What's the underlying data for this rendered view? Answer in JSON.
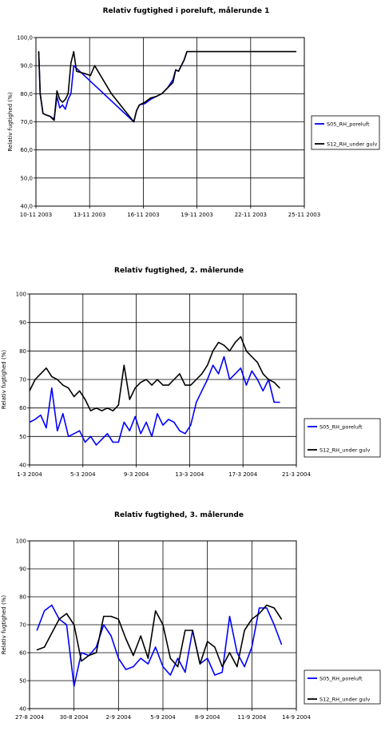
{
  "chart_data": [
    {
      "type": "line",
      "title": "Relativ fugtighed i poreluft, målerunde 1",
      "xlabel": "",
      "ylabel": "Relativ fugtighed (%)",
      "ylim": [
        40,
        100
      ],
      "yticks": [
        "40,0",
        "50,0",
        "60,0",
        "70,0",
        "80,0",
        "90,0",
        "100,0"
      ],
      "xlim": [
        "2003-11-10",
        "2003-11-26"
      ],
      "xticks": [
        "10-11 2003",
        "13-11 2003",
        "16-11 2003",
        "19-11 2003",
        "22-11 2003",
        "25-11 2003"
      ],
      "grid": true,
      "legend": "right",
      "series": [
        {
          "name": "S05_RH_poreluft",
          "color": "#0000ff",
          "x": [
            "2003-11-10T04",
            "2003-11-10T06",
            "2003-11-10T10",
            "2003-11-10T14",
            "2003-11-10T20",
            "2003-11-11T02",
            "2003-11-11T06",
            "2003-11-11T10",
            "2003-11-11T14",
            "2003-11-11T18",
            "2003-11-11T22",
            "2003-11-12T02",
            "2003-11-12T06",
            "2003-11-15T20",
            "2003-11-16T00",
            "2003-11-16T04",
            "2003-11-16T12",
            "2003-11-16T20",
            "2003-11-17T04",
            "2003-11-17T12",
            "2003-11-17T20",
            "2003-11-18T04",
            "2003-11-18T08",
            "2003-11-18T12",
            "2003-11-18T20",
            "2003-11-19T00"
          ],
          "y": [
            95,
            80,
            73,
            72.5,
            72,
            71,
            79,
            75,
            76,
            74.5,
            78,
            80,
            90,
            70,
            74,
            76,
            76.5,
            78,
            79,
            80,
            82,
            85,
            88.5,
            88,
            92,
            95
          ]
        },
        {
          "name": "S12_RH_under gulv",
          "color": "#000000",
          "x": [
            "2003-11-10T04",
            "2003-11-10T06",
            "2003-11-10T10",
            "2003-11-10T14",
            "2003-11-10T20",
            "2003-11-11T02",
            "2003-11-11T06",
            "2003-11-11T10",
            "2003-11-11T14",
            "2003-11-11T18",
            "2003-11-11T22",
            "2003-11-12T02",
            "2003-11-12T06",
            "2003-11-12T10",
            "2003-11-13T00",
            "2003-11-13T06",
            "2003-11-13T12",
            "2003-11-14T12",
            "2003-11-15T20",
            "2003-11-16T00",
            "2003-11-16T04",
            "2003-11-16T12",
            "2003-11-16T20",
            "2003-11-17T04",
            "2003-11-17T12",
            "2003-11-17T20",
            "2003-11-18T04",
            "2003-11-18T08",
            "2003-11-18T12",
            "2003-11-18T20",
            "2003-11-19T00",
            "2003-11-19T04",
            "2003-11-20T00",
            "2003-11-22T00",
            "2003-11-24T00",
            "2003-11-25T12"
          ],
          "y": [
            95,
            80,
            73,
            72.5,
            72,
            70.5,
            81,
            78,
            77,
            78,
            80,
            91,
            95,
            88,
            87,
            86.5,
            90,
            80,
            70,
            74,
            76,
            77,
            78.5,
            79,
            80,
            82,
            84,
            88.5,
            88,
            92,
            95,
            95,
            95,
            95,
            95,
            95
          ]
        }
      ]
    },
    {
      "type": "line",
      "title": "Relativ fugtighed, 2. målerunde",
      "xlabel": "",
      "ylabel": "Relativ fugtighed (%)",
      "ylim": [
        40,
        100
      ],
      "yticks": [
        "40",
        "50",
        "60",
        "70",
        "80",
        "90",
        "100"
      ],
      "xlim": [
        "2004-03-01",
        "2004-03-25"
      ],
      "xticks": [
        "1-3 2004",
        "5-3 2004",
        "9-3 2004",
        "13-3 2004",
        "17-3 2004",
        "21-3 2004"
      ],
      "grid": true,
      "legend": "right",
      "series": [
        {
          "name": "S05_RH_poreluft",
          "color": "#0000ff",
          "x": [
            "2004-03-01T00",
            "2004-03-01T12",
            "2004-03-02T00",
            "2004-03-02T12",
            "2004-03-03T00",
            "2004-03-03T12",
            "2004-03-04T00",
            "2004-03-04T12",
            "2004-03-05T00",
            "2004-03-05T12",
            "2004-03-06T00",
            "2004-03-06T12",
            "2004-03-07T00",
            "2004-03-07T12",
            "2004-03-08T00",
            "2004-03-08T12",
            "2004-03-09T00",
            "2004-03-09T12",
            "2004-03-10T00",
            "2004-03-10T12",
            "2004-03-11T00",
            "2004-03-11T12",
            "2004-03-12T00",
            "2004-03-12T12",
            "2004-03-13T00",
            "2004-03-13T12",
            "2004-03-14T00",
            "2004-03-14T12",
            "2004-03-15T00",
            "2004-03-15T12",
            "2004-03-16T00",
            "2004-03-16T12",
            "2004-03-17T00",
            "2004-03-17T12",
            "2004-03-18T00",
            "2004-03-18T12",
            "2004-03-19T00",
            "2004-03-19T12",
            "2004-03-20T00",
            "2004-03-20T12",
            "2004-03-21T00",
            "2004-03-21T12",
            "2004-03-22T00",
            "2004-03-22T12",
            "2004-03-23T00",
            "2004-03-23T12"
          ],
          "y": [
            55,
            56,
            57.5,
            53,
            67,
            52,
            58,
            50,
            51,
            52,
            48,
            50,
            47,
            49,
            51,
            48,
            48,
            55,
            52,
            57,
            51,
            55,
            50,
            58,
            54,
            56,
            55,
            52,
            51,
            54,
            62,
            66,
            70,
            75,
            72,
            78,
            70,
            72,
            74,
            68,
            73,
            70,
            66,
            70,
            62,
            62
          ]
        },
        {
          "name": "S12_RH_under gulv",
          "color": "#000000",
          "x": [
            "2004-03-01T00",
            "2004-03-01T12",
            "2004-03-02T00",
            "2004-03-02T12",
            "2004-03-03T00",
            "2004-03-03T12",
            "2004-03-04T00",
            "2004-03-04T12",
            "2004-03-05T00",
            "2004-03-05T12",
            "2004-03-06T00",
            "2004-03-06T12",
            "2004-03-07T00",
            "2004-03-07T12",
            "2004-03-08T00",
            "2004-03-08T12",
            "2004-03-09T00",
            "2004-03-09T12",
            "2004-03-10T00",
            "2004-03-10T12",
            "2004-03-11T00",
            "2004-03-11T12",
            "2004-03-12T00",
            "2004-03-12T12",
            "2004-03-13T00",
            "2004-03-13T12",
            "2004-03-14T00",
            "2004-03-14T12",
            "2004-03-15T00",
            "2004-03-15T12",
            "2004-03-16T00",
            "2004-03-16T12",
            "2004-03-17T00",
            "2004-03-17T12",
            "2004-03-18T00",
            "2004-03-18T12",
            "2004-03-19T00",
            "2004-03-19T12",
            "2004-03-20T00",
            "2004-03-20T12",
            "2004-03-21T00",
            "2004-03-21T12",
            "2004-03-22T00",
            "2004-03-22T12",
            "2004-03-23T00",
            "2004-03-23T12"
          ],
          "y": [
            66,
            70,
            72,
            74,
            71,
            70,
            68,
            67,
            64,
            66,
            63,
            59,
            60,
            59,
            60,
            59,
            61,
            75,
            63,
            67,
            69,
            70,
            68,
            70,
            68,
            68,
            70,
            72,
            68,
            68,
            70,
            72,
            75,
            80,
            83,
            82,
            80,
            83,
            85,
            80,
            78,
            76,
            72,
            70,
            69,
            67
          ]
        }
      ]
    },
    {
      "type": "line",
      "title": "Relativ fugtighed, 3. målerunde",
      "xlabel": "",
      "ylabel": "Relativ fugtighed (%)",
      "ylim": [
        40,
        100
      ],
      "yticks": [
        "40",
        "50",
        "60",
        "70",
        "80",
        "90",
        "100"
      ],
      "xlim": [
        "2004-08-27",
        "2004-09-14"
      ],
      "xticks": [
        "27-8 2004",
        "30-8 2004",
        "2-9 2004",
        "5-9 2004",
        "8-9 2004",
        "11-9 2004",
        "14-9 2004"
      ],
      "grid": true,
      "legend": "right",
      "series": [
        {
          "name": "S05_RH_poreluft",
          "color": "#0000ff",
          "x": [
            "2004-08-27T12",
            "2004-08-28T00",
            "2004-08-28T12",
            "2004-08-29T00",
            "2004-08-29T12",
            "2004-08-30T00",
            "2004-08-30T12",
            "2004-08-31T00",
            "2004-08-31T12",
            "2004-09-01T00",
            "2004-09-01T12",
            "2004-09-02T00",
            "2004-09-02T12",
            "2004-09-03T00",
            "2004-09-03T12",
            "2004-09-04T00",
            "2004-09-04T12",
            "2004-09-05T00",
            "2004-09-05T12",
            "2004-09-06T00",
            "2004-09-06T12",
            "2004-09-07T00",
            "2004-09-07T12",
            "2004-09-08T00",
            "2004-09-08T12",
            "2004-09-09T00",
            "2004-09-09T12",
            "2004-09-10T00",
            "2004-09-10T12",
            "2004-09-11T00",
            "2004-09-11T12",
            "2004-09-12T00",
            "2004-09-12T12",
            "2004-09-13T00"
          ],
          "y": [
            68,
            75,
            77,
            72,
            70,
            48,
            60,
            59,
            62,
            70,
            66,
            58,
            54,
            55,
            58,
            56,
            62,
            55,
            52,
            58,
            53,
            68,
            56,
            58,
            52,
            53,
            73,
            60,
            55,
            62,
            76,
            76,
            70,
            63
          ]
        },
        {
          "name": "S12_RH_under gulv",
          "color": "#000000",
          "x": [
            "2004-08-27T12",
            "2004-08-28T00",
            "2004-08-28T12",
            "2004-08-29T00",
            "2004-08-29T12",
            "2004-08-30T00",
            "2004-08-30T12",
            "2004-08-31T00",
            "2004-08-31T12",
            "2004-09-01T00",
            "2004-09-01T12",
            "2004-09-02T00",
            "2004-09-02T12",
            "2004-09-03T00",
            "2004-09-03T12",
            "2004-09-04T00",
            "2004-09-04T12",
            "2004-09-05T00",
            "2004-09-05T12",
            "2004-09-06T00",
            "2004-09-06T12",
            "2004-09-07T00",
            "2004-09-07T12",
            "2004-09-08T00",
            "2004-09-08T12",
            "2004-09-09T00",
            "2004-09-09T12",
            "2004-09-10T00",
            "2004-09-10T12",
            "2004-09-11T00",
            "2004-09-11T12",
            "2004-09-12T00",
            "2004-09-12T12",
            "2004-09-13T00"
          ],
          "y": [
            61,
            62,
            67,
            72,
            74,
            70,
            57,
            59,
            60,
            73,
            73,
            72,
            65,
            59,
            66,
            58,
            75,
            70,
            58,
            55,
            68,
            68,
            56,
            64,
            62,
            55,
            60,
            55,
            68,
            72,
            74,
            77,
            76,
            72
          ]
        }
      ]
    }
  ]
}
